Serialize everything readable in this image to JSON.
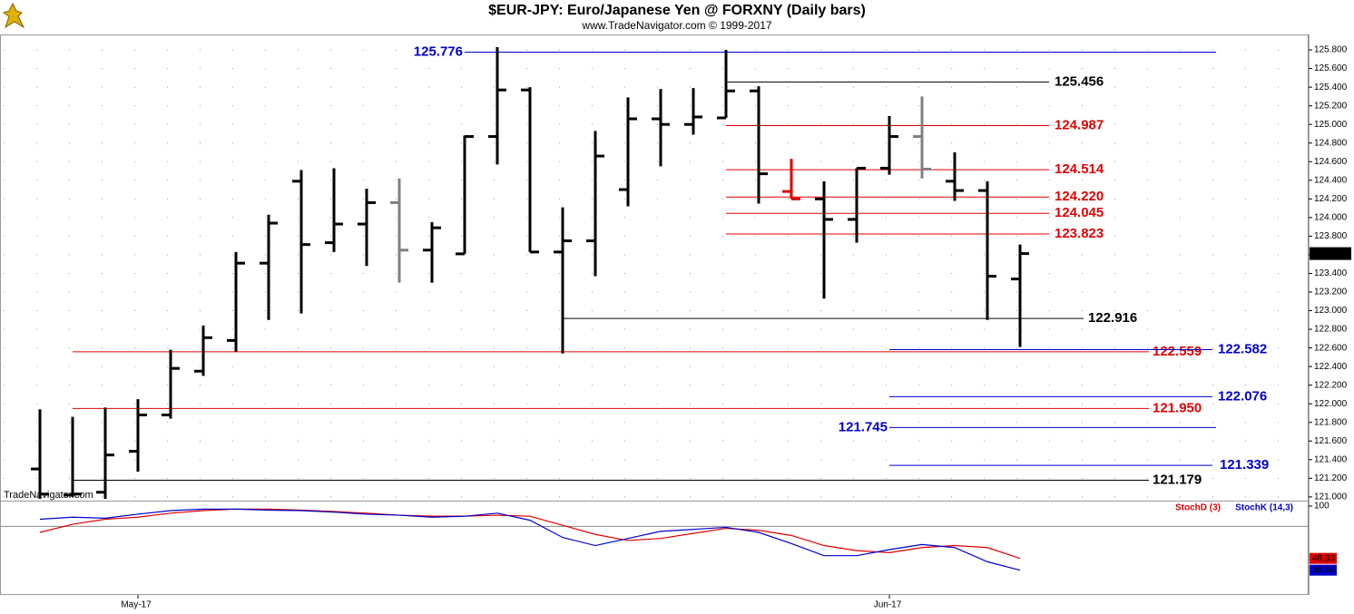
{
  "chart_data": [
    {
      "type": "ohlc",
      "title": "$EUR-JPY:  Euro/Japanese Yen @ FORXNY  (Daily bars)",
      "subtitle": "www.TradeNavigator.com © 1999-2017",
      "watermark": "TradeNavigator.com",
      "open": [
        121.3,
        121.02,
        121.05,
        121.49,
        121.88,
        122.35,
        122.68,
        123.51,
        124.39,
        123.73,
        123.93,
        124.16,
        123.65,
        123.61,
        124.87,
        125.37,
        123.63,
        123.75,
        124.3,
        125.06,
        125.0,
        125.07,
        125.36,
        124.28,
        124.2,
        123.98,
        124.53,
        124.87,
        124.39,
        124.29,
        123.34
      ],
      "high": [
        121.94,
        121.86,
        121.96,
        122.05,
        122.58,
        122.84,
        123.63,
        124.03,
        124.51,
        124.53,
        124.31,
        124.42,
        123.95,
        124.88,
        125.83,
        125.4,
        124.11,
        124.93,
        125.29,
        125.38,
        125.39,
        125.8,
        125.41,
        124.63,
        124.39,
        124.53,
        125.09,
        125.3,
        124.7,
        124.39,
        123.71
      ],
      "low": [
        120.98,
        121.0,
        120.98,
        121.27,
        121.84,
        122.3,
        122.56,
        122.9,
        122.97,
        123.63,
        123.48,
        123.3,
        123.3,
        123.61,
        124.57,
        123.63,
        122.54,
        123.37,
        124.12,
        124.55,
        124.89,
        125.07,
        124.15,
        124.2,
        123.13,
        123.73,
        124.46,
        124.42,
        124.18,
        122.9,
        122.61
      ],
      "close": [
        121.03,
        121.03,
        121.45,
        121.88,
        122.38,
        122.71,
        123.51,
        123.94,
        123.71,
        123.93,
        124.16,
        123.65,
        123.89,
        124.87,
        125.37,
        123.63,
        123.75,
        124.66,
        125.06,
        125.0,
        125.08,
        125.36,
        124.47,
        124.2,
        123.98,
        124.53,
        124.87,
        124.52,
        124.29,
        123.37,
        123.613
      ],
      "bar_colors": [
        "#000",
        "#000",
        "#000",
        "#000",
        "#000",
        "#000",
        "#000",
        "#000",
        "#000",
        "#000",
        "#000",
        "#808080",
        "#000",
        "#000",
        "#000",
        "#000",
        "#000",
        "#000",
        "#000",
        "#000",
        "#000",
        "#000",
        "#000",
        "#e00000",
        "#000",
        "#000",
        "#000",
        "#808080",
        "#000",
        "#000",
        "#000"
      ],
      "levels": [
        {
          "value": 125.776,
          "label": "125.776",
          "color": "#0000cc"
        },
        {
          "value": 125.456,
          "label": "125.456",
          "color": "#000000"
        },
        {
          "value": 124.987,
          "label": "124.987",
          "color": "#e00000"
        },
        {
          "value": 124.514,
          "label": "124.514",
          "color": "#e00000"
        },
        {
          "value": 124.22,
          "label": "124.220",
          "color": "#e00000"
        },
        {
          "value": 124.045,
          "label": "124.045",
          "color": "#e00000"
        },
        {
          "value": 123.823,
          "label": "123.823",
          "color": "#e00000"
        },
        {
          "value": 122.916,
          "label": "122.916",
          "color": "#000000"
        },
        {
          "value": 122.559,
          "label": "122.559",
          "color": "#e00000"
        },
        {
          "value": 122.582,
          "label": "122.582",
          "color": "#0000cc"
        },
        {
          "value": 122.076,
          "label": "122.076",
          "color": "#0000cc"
        },
        {
          "value": 121.95,
          "label": "121.950",
          "color": "#e00000"
        },
        {
          "value": 121.745,
          "label": "121.745",
          "color": "#0000cc"
        },
        {
          "value": 121.339,
          "label": "121.339",
          "color": "#0000cc"
        },
        {
          "value": 121.179,
          "label": "121.179",
          "color": "#000000"
        }
      ],
      "ylim": [
        120.96,
        125.966
      ],
      "yticks": [
        {
          "value": 121.0,
          "label": "121.000"
        },
        {
          "value": 121.2,
          "label": "121.200"
        },
        {
          "value": 121.4,
          "label": "121.400"
        },
        {
          "value": 121.6,
          "label": "121.600"
        },
        {
          "value": 121.8,
          "label": "121.800"
        },
        {
          "value": 122.0,
          "label": "122.000"
        },
        {
          "value": 122.2,
          "label": "122.200"
        },
        {
          "value": 122.4,
          "label": "122.400"
        },
        {
          "value": 122.6,
          "label": "122.600"
        },
        {
          "value": 122.8,
          "label": "122.800"
        },
        {
          "value": 123.0,
          "label": "123.000"
        },
        {
          "value": 123.2,
          "label": "123.200"
        },
        {
          "value": 123.4,
          "label": "123.400"
        },
        {
          "value": 123.6,
          "label": "123.600"
        },
        {
          "value": 123.8,
          "label": "123.800"
        },
        {
          "value": 124.0,
          "label": "124.000"
        },
        {
          "value": 124.2,
          "label": "124.200"
        },
        {
          "value": 124.4,
          "label": "124.400"
        },
        {
          "value": 124.6,
          "label": "124.600"
        },
        {
          "value": 124.8,
          "label": "124.800"
        },
        {
          "value": 125.0,
          "label": "125.000"
        },
        {
          "value": 125.2,
          "label": "125.200"
        },
        {
          "value": 125.4,
          "label": "125.400"
        },
        {
          "value": 125.6,
          "label": "125.600"
        },
        {
          "value": 125.8,
          "label": "125.800"
        }
      ],
      "grid": true
    },
    {
      "type": "line",
      "categories": [
        null,
        null,
        null,
        "May-17",
        null,
        null,
        null,
        null,
        null,
        null,
        null,
        null,
        null,
        null,
        null,
        null,
        null,
        null,
        null,
        null,
        null,
        null,
        null,
        null,
        null,
        null,
        "Jun-17",
        null,
        null,
        null,
        null
      ],
      "series": [
        {
          "name": "StochD (3)",
          "color": "#e00000",
          "values": [
            74,
            82,
            87,
            89,
            93,
            95.5,
            97,
            97,
            96,
            94.6,
            93,
            91,
            90,
            90,
            91,
            90,
            81,
            72,
            66,
            68,
            73,
            78,
            76,
            71,
            61,
            56,
            54,
            59,
            61,
            59,
            48.33
          ]
        },
        {
          "name": "StochK (14,3)",
          "color": "#0000cc",
          "values": [
            87,
            89,
            88,
            92,
            95.5,
            97,
            97,
            96,
            95.5,
            94,
            92,
            91,
            89,
            90,
            93,
            86,
            69,
            61,
            68,
            75,
            77,
            79,
            74,
            63,
            51,
            51,
            57,
            62,
            59,
            45,
            36.68
          ]
        }
      ],
      "ylim": [
        0,
        100
      ],
      "yticks": [
        100
      ],
      "guide_lines": [
        80
      ]
    }
  ]
}
